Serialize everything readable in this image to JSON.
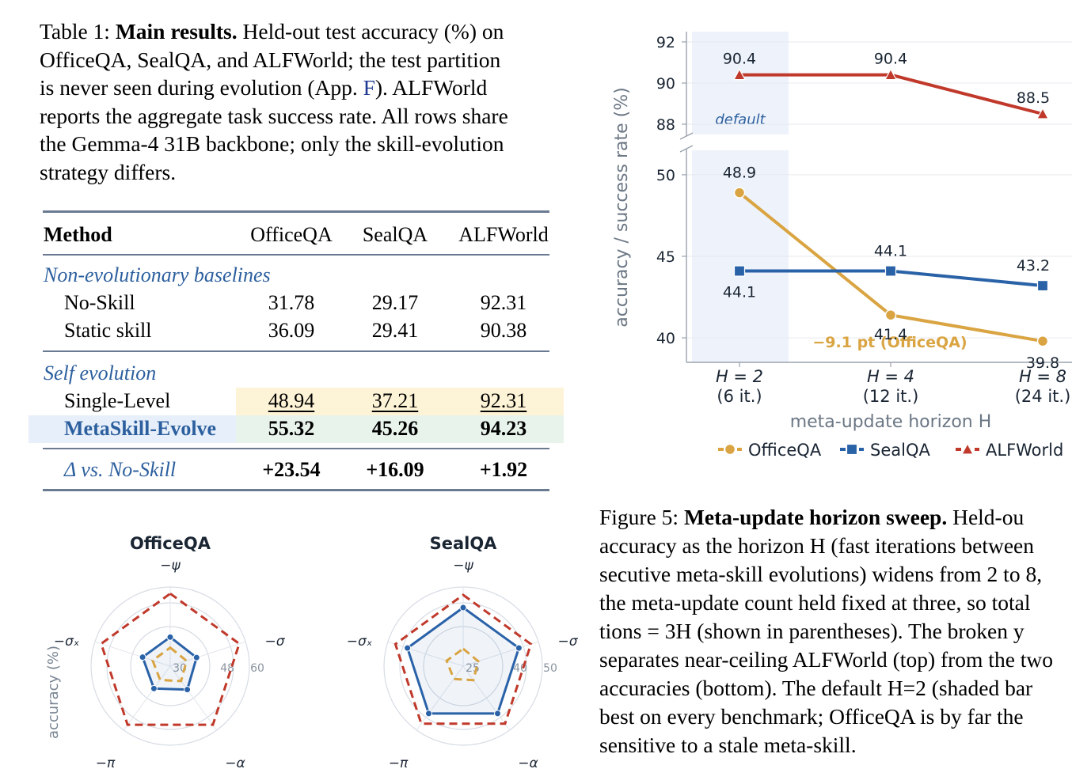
{
  "table_caption": {
    "prefix": "Table 1: ",
    "bold": "Main results.",
    "line1_rest": " Held-out test accuracy (%) on",
    "line2": "OfficeQA, SealQA, and ALFWorld; the test partition",
    "line3_pre": "is never seen during evolution (App. ",
    "line3_ref": "F",
    "line3_post": "). ALFWorld",
    "line4": "reports the aggregate task success rate. All rows share",
    "line5": "the Gemma-4 31B backbone; only the skill-evolution",
    "line6": "strategy differs."
  },
  "table": {
    "headers": [
      "Method",
      "OfficeQA",
      "SealQA",
      "ALFWorld"
    ],
    "groups": [
      {
        "label": "Non-evolutionary baselines",
        "rows": [
          {
            "method": "No-Skill",
            "values": [
              "31.78",
              "29.17",
              "92.31"
            ]
          },
          {
            "method": "Static skill",
            "values": [
              "36.09",
              "29.41",
              "90.38"
            ]
          }
        ]
      },
      {
        "label": "Self evolution",
        "rows": [
          {
            "method": "Single-Level",
            "values": [
              "48.94",
              "37.21",
              "92.31"
            ]
          },
          {
            "method": "MetaSkill-Evolve",
            "values": [
              "55.32",
              "45.26",
              "94.23"
            ]
          }
        ]
      }
    ],
    "delta_row": {
      "label": "Δ vs. No-Skill",
      "values": [
        "+23.54",
        "+16.09",
        "+1.92"
      ]
    },
    "colors": {
      "rule": "#6a7b91",
      "group_label": "#2c5f9e",
      "single_level_bg": "#fdf3d6",
      "metaskill_method_bg": "#e7effa",
      "metaskill_values_bg": "#e8f3ec"
    }
  },
  "line_chart": {
    "type": "line",
    "xlabel": "meta-update horizon H",
    "ylabel": "accuracy / success rate (%)",
    "x_ticks": [
      {
        "main": "H = 2",
        "sub": "(6 it.)"
      },
      {
        "main": "H = 4",
        "sub": "(12 it.)"
      },
      {
        "main": "H = 8",
        "sub": "(24 it.)"
      }
    ],
    "upper_ylim": [
      87.5,
      92.5
    ],
    "upper_ticks": [
      "92",
      "90",
      "88"
    ],
    "lower_ylim": [
      38.5,
      51.5
    ],
    "lower_ticks": [
      "50",
      "45",
      "40"
    ],
    "shaded_label": "default",
    "annotation": "−9.1 pt (OfficeQA)",
    "series": [
      {
        "name": "OfficeQA",
        "color": "#d9a441",
        "marker": "circle",
        "values": [
          48.9,
          41.4,
          39.8
        ],
        "labels": [
          "48.9",
          "41.4",
          "39.8"
        ]
      },
      {
        "name": "SealQA",
        "color": "#2a62a8",
        "marker": "square",
        "values": [
          44.1,
          44.1,
          43.2
        ],
        "labels": [
          "44.1",
          "44.1",
          "43.2"
        ]
      },
      {
        "name": "ALFWorld",
        "color": "#c0392b",
        "marker": "triangle",
        "values": [
          90.4,
          90.4,
          88.5
        ],
        "labels": [
          "90.4",
          "90.4",
          "88.5"
        ]
      }
    ],
    "colors": {
      "shade": "#eef3fb",
      "axis": "#9aa3ad",
      "text": "#1a2533",
      "grid": "#e6e9ee",
      "xlabel": "#6b7785"
    }
  },
  "radar_charts": [
    {
      "title": "OfficeQA",
      "ylabel": "accuracy (%)",
      "axes": [
        "−ψ",
        "−σ",
        "−α",
        "−π",
        "−σₓ"
      ],
      "r_max": 60,
      "ring_labels": [
        "30",
        "48",
        "60"
      ],
      "series": [
        {
          "style": "outer-dashed",
          "color": "#c0392b",
          "values": [
            55,
            55,
            55,
            55,
            55
          ]
        },
        {
          "style": "solid",
          "color": "#2a62a8",
          "values": [
            22,
            21,
            22,
            21,
            22
          ]
        },
        {
          "style": "inner-dashed",
          "color": "#d9a441",
          "values": [
            14,
            13,
            14,
            13,
            14
          ]
        }
      ]
    },
    {
      "title": "SealQA",
      "ylabel": "",
      "axes": [
        "−ψ",
        "−σ",
        "−α",
        "−π",
        "−σₓ"
      ],
      "r_max": 50,
      "ring_labels": [
        "25",
        "40",
        "50"
      ],
      "series": [
        {
          "style": "outer-dashed",
          "color": "#c0392b",
          "values": [
            45,
            45,
            45,
            45,
            45
          ]
        },
        {
          "style": "solid",
          "color": "#2a62a8",
          "values": [
            37,
            37,
            37,
            37,
            37
          ]
        },
        {
          "style": "inner-dashed",
          "color": "#d9a441",
          "values": [
            11,
            10,
            11,
            10,
            11
          ]
        }
      ]
    }
  ],
  "fig5_caption": {
    "prefix": "Figure 5: ",
    "bold": "Meta-update horizon sweep.",
    "line1_rest": " Held-ou",
    "line2": "accuracy as the horizon H (fast iterations between",
    "line3": "secutive meta-skill evolutions) widens from 2 to 8,",
    "line4": "the meta-update count held fixed at three, so total",
    "line5": "tions = 3H (shown in parentheses). The broken y",
    "line6": "separates near-ceiling ALFWorld (top) from the two",
    "line7": "accuracies (bottom). The default H=2 (shaded bar",
    "line8": "best on every benchmark; OfficeQA is by far the",
    "line9": "sensitive to a stale meta-skill."
  }
}
